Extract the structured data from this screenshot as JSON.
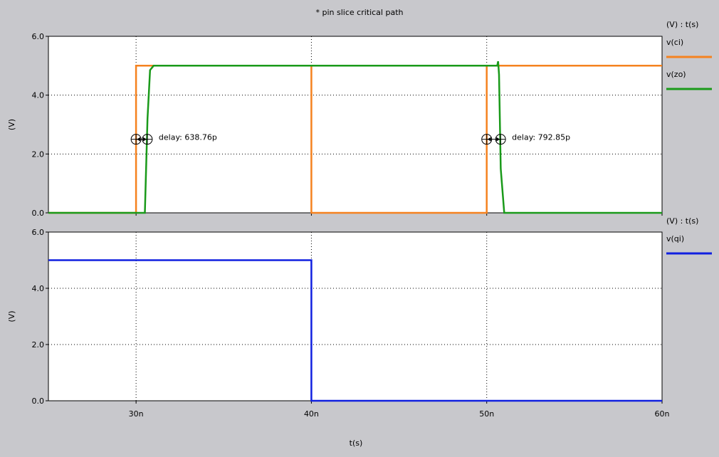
{
  "title": "* pin slice critical path",
  "xlabel": "t(s)",
  "chart_data": [
    {
      "type": "line",
      "ylabel": "(V)",
      "legend_header": "(V) : t(s)",
      "xlim": [
        25,
        60
      ],
      "ylim": [
        0,
        6
      ],
      "x_ticks": [
        30,
        40,
        50,
        60
      ],
      "x_tick_labels": [
        "30n",
        "40n",
        "50n",
        "60n"
      ],
      "y_ticks": [
        0,
        2,
        4,
        6
      ],
      "y_tick_labels": [
        "0.0",
        "2.0",
        "4.0",
        "6.0"
      ],
      "series": [
        {
          "name": "v(ci)",
          "color": "#f5821f",
          "x": [
            25,
            30,
            30,
            40,
            40,
            50,
            50,
            60
          ],
          "y": [
            0,
            0,
            5,
            5,
            0,
            0,
            5,
            5
          ]
        },
        {
          "name": "v(zo)",
          "color": "#1a9a1a",
          "x": [
            25,
            30.5,
            30.65,
            30.8,
            31,
            50.6,
            50.65,
            50.7,
            50.8,
            51,
            60
          ],
          "y": [
            0,
            0,
            3.2,
            4.85,
            5,
            5,
            5.15,
            4.7,
            1.5,
            0,
            0
          ]
        }
      ],
      "annotations": [
        {
          "text": "delay: 638.76p",
          "x1": 30.0,
          "x2": 30.64,
          "y": 2.5
        },
        {
          "text": "delay: 792.85p",
          "x1": 50.0,
          "x2": 50.79,
          "y": 2.5
        }
      ]
    },
    {
      "type": "line",
      "ylabel": "(V)",
      "legend_header": "(V) : t(s)",
      "xlim": [
        25,
        60
      ],
      "ylim": [
        0,
        6
      ],
      "x_ticks": [
        30,
        40,
        50,
        60
      ],
      "x_tick_labels": [
        "30n",
        "40n",
        "50n",
        "60n"
      ],
      "y_ticks": [
        0,
        2,
        4,
        6
      ],
      "y_tick_labels": [
        "0.0",
        "2.0",
        "4.0",
        "6.0"
      ],
      "series": [
        {
          "name": "v(qi)",
          "color": "#1020e0",
          "x": [
            25,
            40,
            40,
            60
          ],
          "y": [
            5,
            5,
            0,
            0
          ]
        }
      ]
    }
  ]
}
